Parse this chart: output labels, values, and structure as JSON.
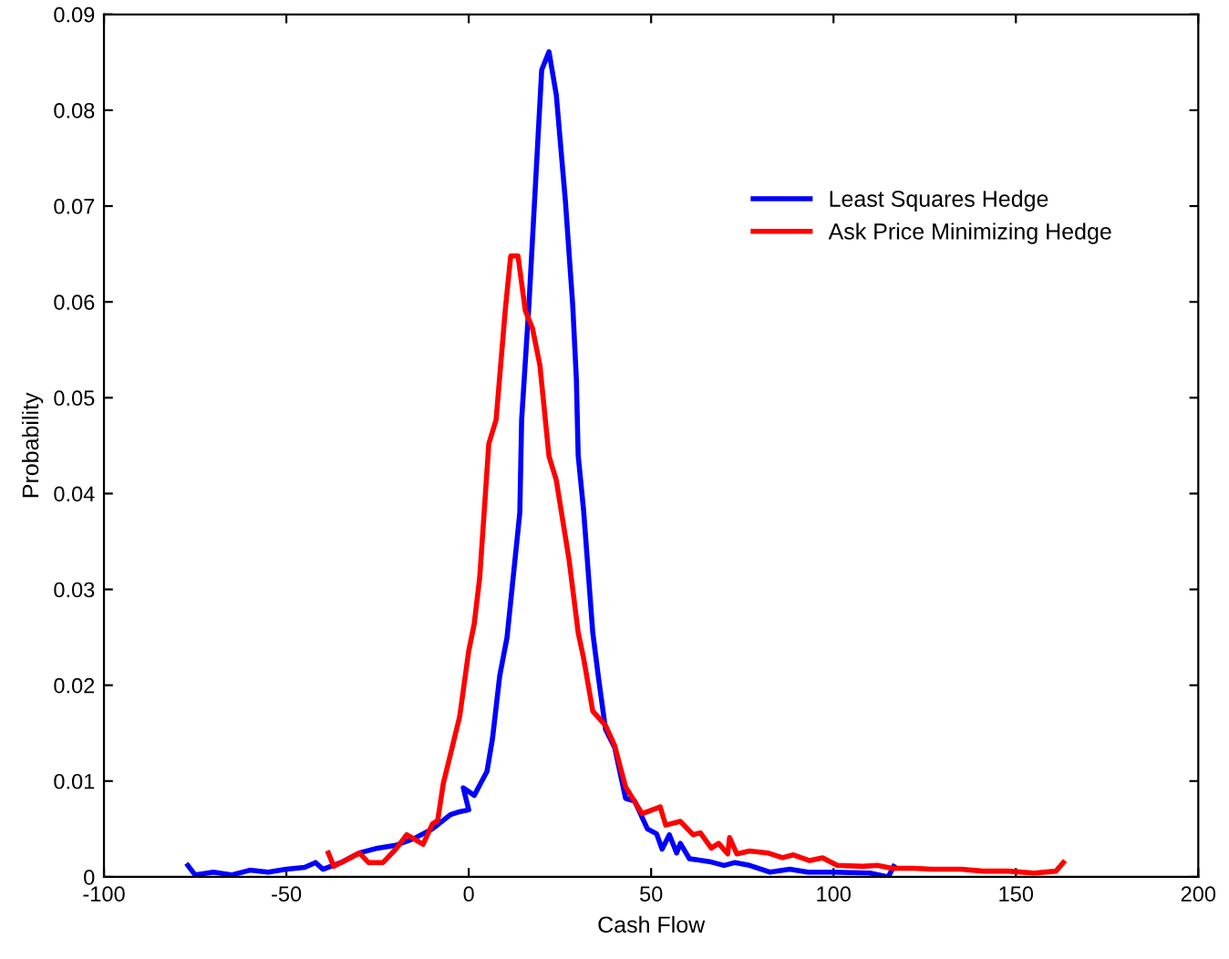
{
  "chart_data": {
    "type": "line",
    "xlabel": "Cash Flow",
    "ylabel": "Probability",
    "xlim": [
      -100,
      200
    ],
    "ylim": [
      0,
      0.09
    ],
    "xticks": [
      -100,
      -50,
      0,
      50,
      100,
      150,
      200
    ],
    "yticks": [
      0,
      0.01,
      0.02,
      0.03,
      0.04,
      0.05,
      0.06,
      0.07,
      0.08,
      0.09
    ],
    "grid": false,
    "legend": "top right",
    "line_style": "solid",
    "marker": "none",
    "series": [
      {
        "name": "Least Squares Hedge",
        "color": "#0000ff",
        "x": [
          -77,
          -75,
          -70,
          -65,
          -60,
          -55,
          -50,
          -45,
          -42,
          -40,
          -35,
          -30,
          -25,
          -20,
          -15,
          -10,
          -5,
          -2.5,
          0,
          -1.5,
          1.5,
          5,
          6.5,
          8.5,
          10.5,
          14,
          14.5,
          16.5,
          20,
          22,
          24,
          26.5,
          28.5,
          29.5,
          30,
          31.5,
          34,
          35.5,
          37.5,
          40,
          43,
          45.5,
          49,
          51.5,
          53,
          55,
          57,
          58,
          60.5,
          66,
          70,
          73,
          77,
          82.5,
          88,
          93,
          100,
          110,
          115,
          116.5
        ],
        "values": [
          0.0012,
          0.0002,
          0.0005,
          0.0002,
          0.0007,
          0.0005,
          0.0008,
          0.001,
          0.0015,
          0.0008,
          0.0015,
          0.0025,
          0.003,
          0.0033,
          0.004,
          0.005,
          0.0065,
          0.0068,
          0.007,
          0.0093,
          0.0085,
          0.011,
          0.0144,
          0.021,
          0.025,
          0.038,
          0.0477,
          0.0597,
          0.0842,
          0.0861,
          0.0816,
          0.0705,
          0.0597,
          0.052,
          0.044,
          0.0382,
          0.0255,
          0.021,
          0.0154,
          0.0135,
          0.0082,
          0.0079,
          0.005,
          0.0045,
          0.0029,
          0.0044,
          0.0025,
          0.0035,
          0.0019,
          0.0016,
          0.0012,
          0.0015,
          0.0012,
          0.0005,
          0.0008,
          0.0005,
          0.0005,
          0.0004,
          0.0,
          0.0011
        ]
      },
      {
        "name": "Ask Price Minimizing Hedge",
        "color": "#ff0000",
        "x": [
          -38.5,
          -37,
          -30,
          -27.5,
          -23.5,
          -20,
          -17,
          -12.5,
          -10,
          -8.5,
          -7,
          -2.5,
          0,
          1.5,
          3,
          5.5,
          7.5,
          10,
          11.5,
          13.5,
          15.5,
          17.5,
          19.5,
          22,
          24,
          27.5,
          30,
          31.5,
          34,
          37.5,
          40,
          43,
          47.5,
          52.5,
          54,
          58,
          61.5,
          63.5,
          66.5,
          68.5,
          71,
          71.5,
          73.5,
          77,
          82,
          86,
          89,
          93.5,
          97,
          101,
          108,
          112,
          116,
          122,
          127,
          135,
          141,
          148,
          155,
          161,
          163
        ],
        "values": [
          0.0025,
          0.0011,
          0.0025,
          0.0015,
          0.0015,
          0.0029,
          0.0044,
          0.0034,
          0.0055,
          0.0059,
          0.0097,
          0.0167,
          0.0236,
          0.0264,
          0.0312,
          0.0452,
          0.0477,
          0.0591,
          0.0648,
          0.0648,
          0.0591,
          0.0572,
          0.0534,
          0.0439,
          0.0414,
          0.0331,
          0.0255,
          0.0228,
          0.0173,
          0.0158,
          0.0137,
          0.0094,
          0.0066,
          0.0073,
          0.0054,
          0.0058,
          0.0044,
          0.0046,
          0.003,
          0.0035,
          0.0024,
          0.0041,
          0.0024,
          0.0027,
          0.0025,
          0.002,
          0.0023,
          0.0017,
          0.002,
          0.0012,
          0.0011,
          0.0012,
          0.0009,
          0.0009,
          0.0008,
          0.0008,
          0.0006,
          0.0006,
          0.0004,
          0.0006,
          0.0015
        ]
      }
    ]
  }
}
